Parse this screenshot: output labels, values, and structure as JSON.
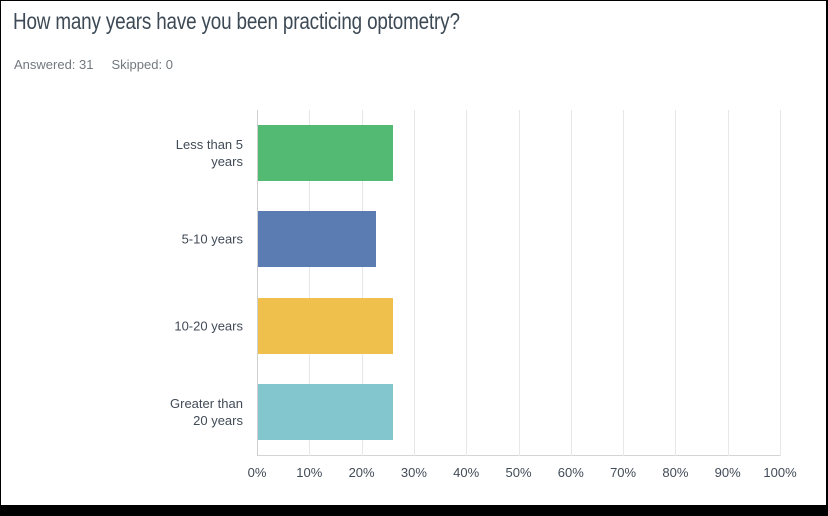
{
  "header": {
    "title": "How many years have you been practicing optometry?",
    "answered": "Answered: 31",
    "skipped": "Skipped: 0"
  },
  "chart_data": {
    "type": "bar",
    "orientation": "horizontal",
    "title": "How many years have you been practicing optometry?",
    "categories": [
      "Less than 5 years",
      "5-10 years",
      "10-20 years",
      "Greater than 20 years"
    ],
    "values": [
      25.81,
      22.58,
      25.81,
      25.81
    ],
    "value_unit": "%",
    "bar_colors": [
      "#53ba74",
      "#5a7cb3",
      "#efc04b",
      "#83c6cd"
    ],
    "x_ticks": [
      "0%",
      "10%",
      "20%",
      "30%",
      "40%",
      "50%",
      "60%",
      "70%",
      "80%",
      "90%",
      "100%"
    ],
    "xlim": [
      0,
      100
    ],
    "xlabel": "",
    "ylabel": "",
    "grid": true,
    "legend": false,
    "gridline_color": "#e7e7e7",
    "axis_line_color": "#cfcfcf"
  }
}
